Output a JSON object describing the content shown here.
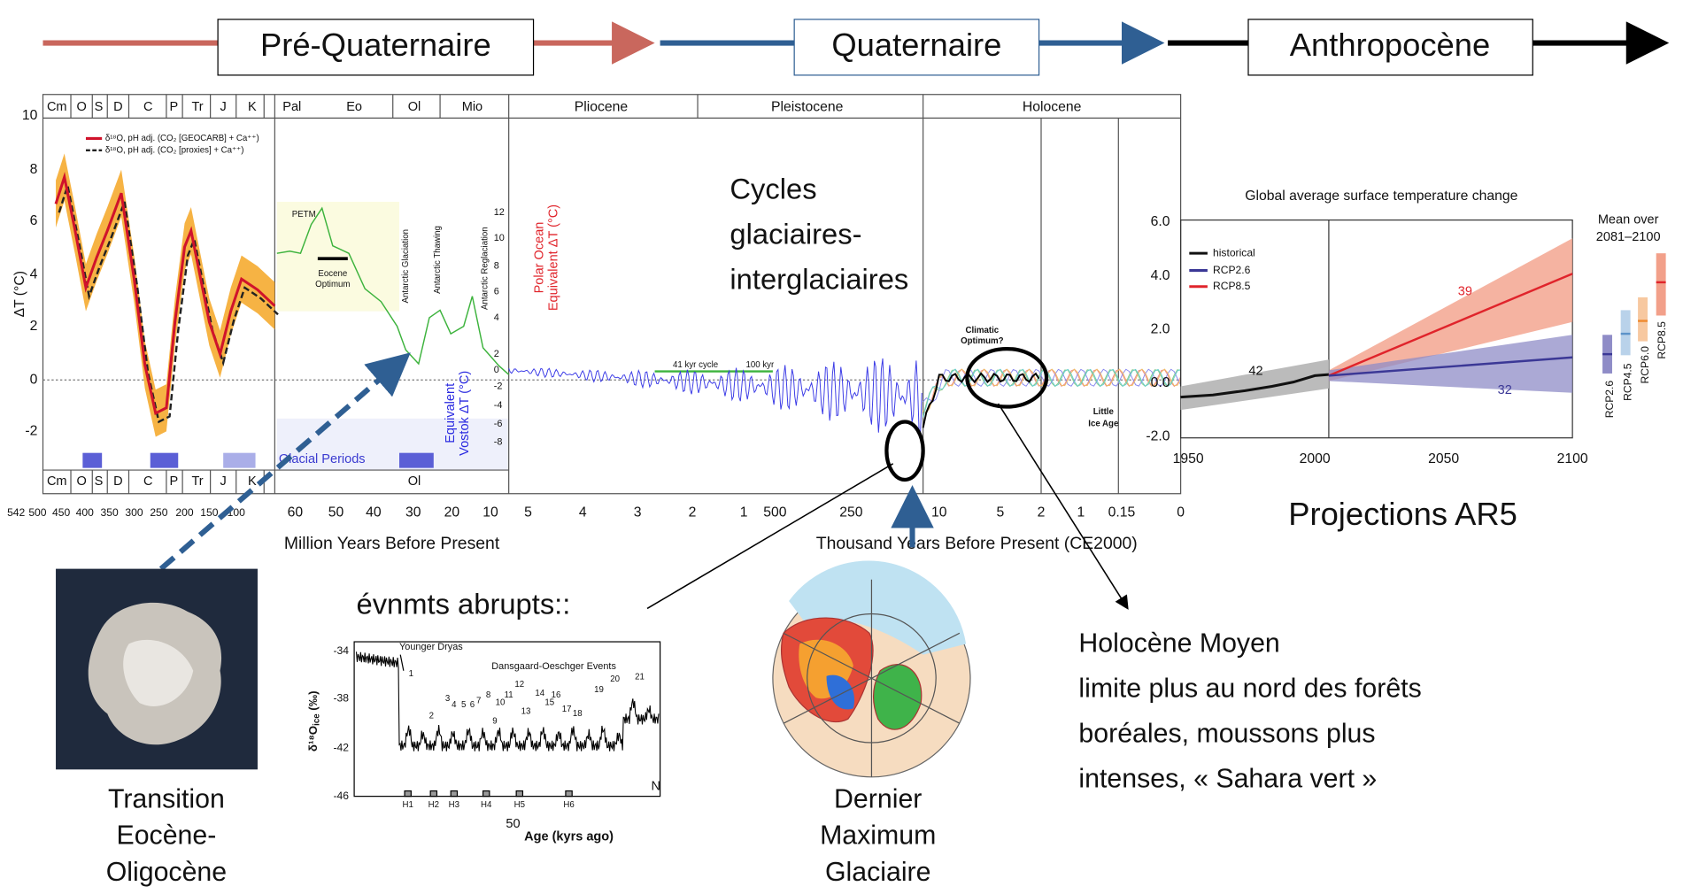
{
  "flow": {
    "pre_quaternary": "Pré-Quaternaire",
    "quaternary": "Quaternaire",
    "anthropocene": "Anthropocène"
  },
  "main_chart": {
    "eras_top": [
      "Cm",
      "O",
      "S",
      "D",
      "C",
      "P",
      "Tr",
      "J",
      "K",
      "Pal",
      "Eo",
      "Ol",
      "Mio",
      "Pliocene",
      "Pleistocene",
      "Holocene"
    ],
    "eras_bottom": [
      "Cm",
      "O",
      "S",
      "D",
      "C",
      "P",
      "Tr",
      "J",
      "K",
      "Ol"
    ],
    "y_label": "ΔT (°C)",
    "yticks": [
      "10",
      "8",
      "6",
      "4",
      "2",
      "0",
      "-2"
    ],
    "xticks": [
      "542",
      "500",
      "450",
      "400",
      "350",
      "300",
      "250",
      "200",
      "150",
      "100",
      "60",
      "50",
      "40",
      "30",
      "20",
      "10",
      "5",
      "4",
      "3",
      "2",
      "1",
      "500",
      "250",
      "10",
      "5",
      "2",
      "1",
      "0.15",
      "0"
    ],
    "x_label_myr": "Million Years Before Present",
    "x_label_kyr": "Thousand Years Before Present (CE2000)",
    "legend": [
      "δ¹⁸O, pH adj. (CO₂ [GEOCARB] + Ca⁺⁺)",
      "δ¹⁸O, pH adj. (CO₂ [proxies] + Ca⁺⁺)"
    ],
    "petm": "PETM",
    "eocene_optimum": [
      "Eocene",
      "Optimum"
    ],
    "antarctic_labels": [
      "Antarctic Glaciation",
      "Antarctic Thawing",
      "Antarctic Reglaciation"
    ],
    "polar_axis_label": [
      "Polar Ocean",
      "Equivalent ΔT (°C)"
    ],
    "vostok_axis_label": [
      "Equivalent",
      "Vostok ΔT (°C)"
    ],
    "polar_ticks": [
      "12",
      "10",
      "8",
      "6",
      "4",
      "2",
      "0",
      "-2",
      "-4",
      "-6",
      "-8"
    ],
    "glacial_periods": "Glacial Periods",
    "cycle_41": "41 kyr cycle",
    "cycle_100": "100 kyr",
    "climatic_optimum": [
      "Climatic",
      "Optimum?"
    ],
    "little_ice_age": [
      "Little",
      "Ice Age"
    ]
  },
  "ar5": {
    "title": "Global average surface temperature change",
    "yticks": [
      "6.0",
      "4.0",
      "2.0",
      "0.0",
      "-2.0"
    ],
    "xticks": [
      "1950",
      "2000",
      "2050",
      "2100"
    ],
    "legend": [
      "historical",
      "RCP2.6",
      "RCP8.5"
    ],
    "counts": [
      "42",
      "39",
      "32"
    ],
    "mean_over": [
      "Mean over",
      "2081–2100"
    ],
    "scenarios": [
      "RCP2.6",
      "RCP4.5",
      "RCP6.0",
      "RCP8.5"
    ],
    "caption": "Projections AR5"
  },
  "ice_core": {
    "heading": "évnmts abrupts::",
    "younger_dryas": "Younger Dryas",
    "do_events": "Dansgaard-Oeschger Events",
    "yticks": [
      "-34",
      "-38",
      "-42",
      "-46"
    ],
    "y_label": "δ¹⁸O",
    "y_label_sub": "ice",
    "y_label_unit": " (‰)",
    "xtick": "50",
    "x_label": "Age (kyrs ago)",
    "heinrich": [
      "H1",
      "H2",
      "H3",
      "H4",
      "H5",
      "H6"
    ],
    "events": [
      "1",
      "2",
      "3",
      "4",
      "5",
      "6",
      "7",
      "8",
      "9",
      "10",
      "11",
      "12",
      "13",
      "14",
      "15",
      "16",
      "17",
      "18",
      "19",
      "20",
      "21"
    ],
    "corner": "N"
  },
  "cycles": [
    "Cycles",
    "glaciaires-",
    "interglaciaires"
  ],
  "captions": {
    "eo": [
      "Transition",
      "Eocène-",
      "Oligocène"
    ],
    "lgm": [
      "Dernier",
      "Maximum",
      "Glaciaire"
    ],
    "holocene": [
      "Holocène Moyen",
      "limite plus au nord des forêts",
      "boréales, moussons plus",
      "intenses, « Sahara vert »"
    ]
  }
}
